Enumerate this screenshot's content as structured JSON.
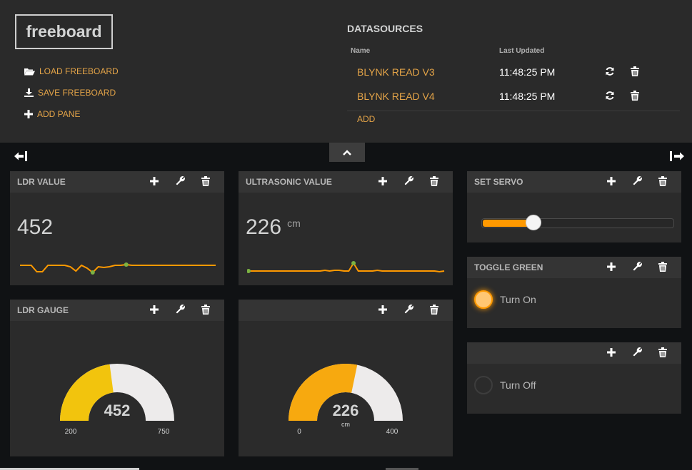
{
  "app": {
    "logo": "freeboard"
  },
  "menu": [
    {
      "label": "LOAD FREEBOARD",
      "icon": "folder-open-icon"
    },
    {
      "label": "SAVE FREEBOARD",
      "icon": "download-icon"
    },
    {
      "label": "ADD PANE",
      "icon": "plus-icon"
    }
  ],
  "datasources": {
    "title": "DATASOURCES",
    "col_name": "Name",
    "col_updated": "Last Updated",
    "rows": [
      {
        "name": "BLYNK READ V3",
        "updated": "11:48:25 PM"
      },
      {
        "name": "BLYNK READ V4",
        "updated": "11:48:25 PM"
      }
    ],
    "add_label": "ADD"
  },
  "panes": {
    "ldr_value": {
      "title": "LDR VALUE",
      "value": "452",
      "sparkline": [
        0.55,
        0.55,
        0.55,
        0.1,
        0.1,
        0.55,
        0.55,
        0.55,
        0.55,
        0.45,
        0.15,
        0.55,
        0.35,
        0.05,
        0.45,
        0.4,
        0.45,
        0.55,
        0.55,
        0.6,
        0.55,
        0.55,
        0.55,
        0.55,
        0.55,
        0.55,
        0.55,
        0.55,
        0.55,
        0.55,
        0.55,
        0.55,
        0.55,
        0.55,
        0.55,
        0.55
      ]
    },
    "ultrasonic_value": {
      "title": "ULTRASONIC VALUE",
      "value": "226",
      "unit": "cm",
      "sparkline": [
        0.15,
        0.15,
        0.15,
        0.15,
        0.15,
        0.15,
        0.15,
        0.15,
        0.15,
        0.15,
        0.15,
        0.15,
        0.15,
        0.15,
        0.15,
        0.15,
        0.2,
        0.15,
        0.2,
        0.2,
        0.15,
        0.15,
        0.7,
        0.15,
        0.15,
        0.15,
        0.15,
        0.2,
        0.15,
        0.15,
        0.15,
        0.15,
        0.15,
        0.15,
        0.15,
        0.15,
        0.15,
        0.15,
        0.15,
        0.15,
        0.1,
        0.15
      ]
    },
    "set_servo": {
      "title": "SET SERVO",
      "slider_fraction": 0.27
    },
    "toggle_green": {
      "title": "TOGGLE GREEN",
      "label": "Turn On",
      "state": "on"
    },
    "toggle_blank": {
      "title": "",
      "label": "Turn Off",
      "state": "off"
    },
    "ldr_gauge": {
      "title": "LDR GAUGE",
      "value": 452,
      "min": 200,
      "max": 750,
      "min_label": "200",
      "max_label": "750",
      "value_label": "452",
      "unit": "",
      "color": "#f2c40d"
    },
    "us_gauge": {
      "title": "",
      "value": 226,
      "min": 0,
      "max": 400,
      "min_label": "0",
      "max_label": "400",
      "value_label": "226",
      "unit": "cm",
      "color": "#f7a90f"
    }
  },
  "colors": {
    "accent": "#e4a448",
    "line": "#ff9900",
    "dot": "#7cb342",
    "gauge_bg": "#edebeb"
  }
}
